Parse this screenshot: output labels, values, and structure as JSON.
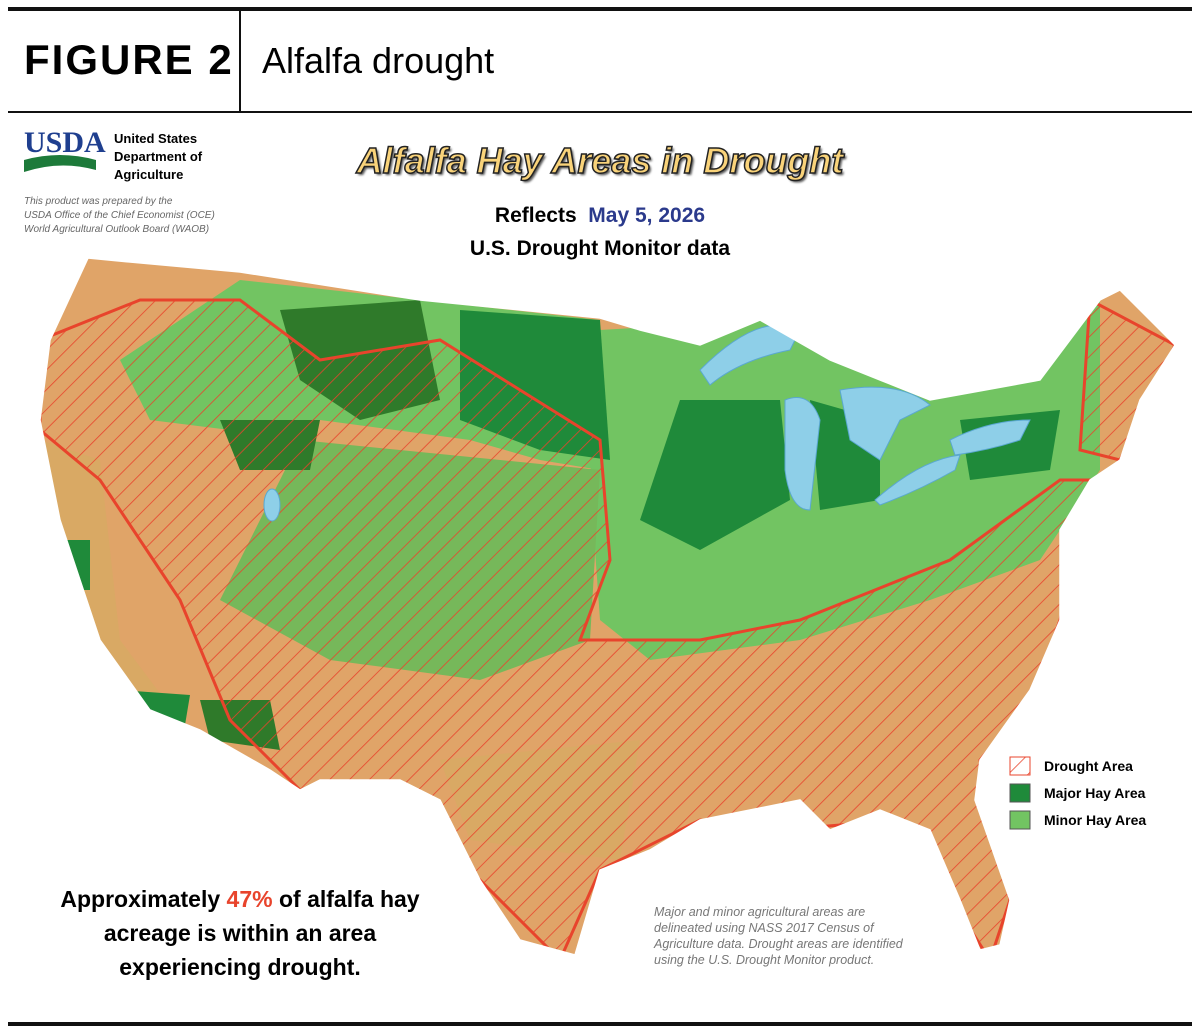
{
  "header": {
    "figure": "FIGURE 2",
    "title": "Alfalfa drought"
  },
  "logo": {
    "mark": "USDA",
    "agency": [
      "United States",
      "Department of",
      "Agriculture"
    ]
  },
  "credit": [
    "This product was prepared by the",
    "USDA Office of the Chief Economist (OCE)",
    "World Agricultural Outlook Board (WAOB)"
  ],
  "map": {
    "title": "Alfalfa Hay Areas in Drought",
    "subtitle_prefix": "Reflects",
    "date": "May 5, 2026",
    "subtitle_line2": "U.S. Drought Monitor data"
  },
  "legend": [
    "Drought Area",
    "Major Hay Area",
    "Minor Hay Area"
  ],
  "summary": {
    "before": "Approximately",
    "highlight": "47%",
    "after": "of alfalfa hay acreage is within an area experiencing drought."
  },
  "note": "Major and minor agricultural areas are delineated using NASS 2017 Census of Agriculture data.  Drought areas are identified using the U.S. Drought Monitor product."
}
